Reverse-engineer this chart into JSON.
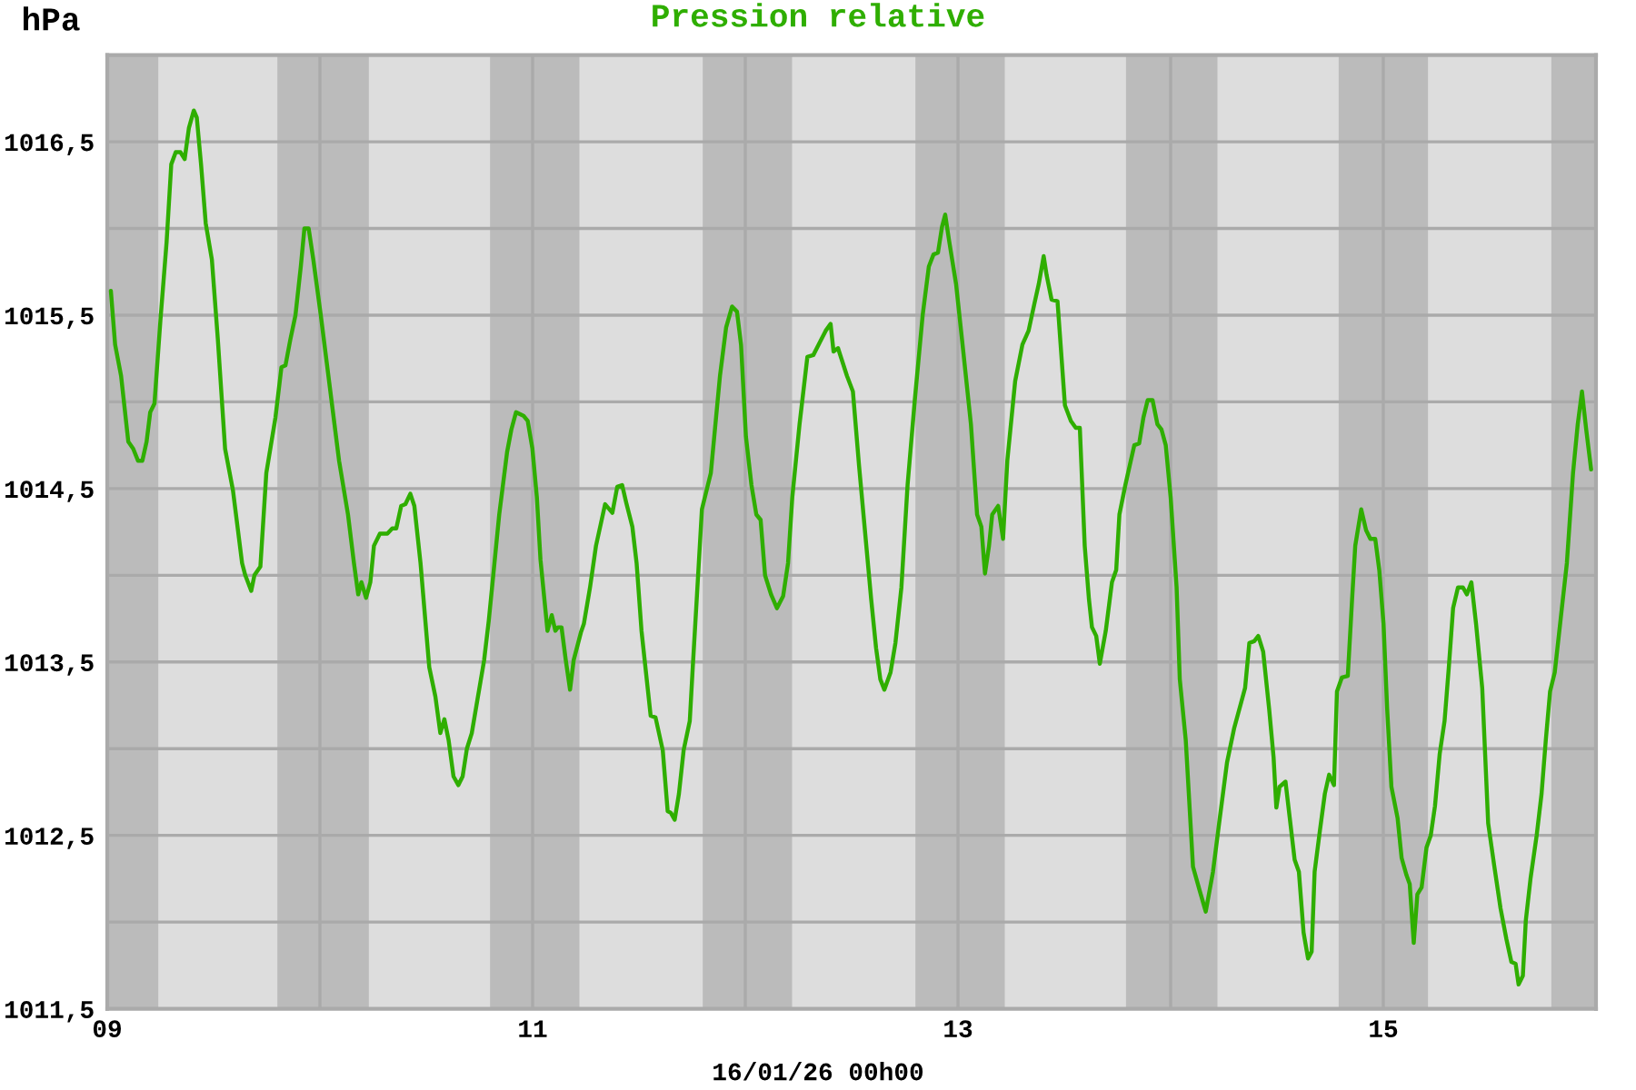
{
  "chart_data": {
    "type": "line",
    "title": "Pression relative",
    "xlabel": "16/01/26 00h00",
    "ylabel": "hPa",
    "x": [
      9.017,
      9.037,
      9.065,
      9.099,
      9.122,
      9.145,
      9.165,
      9.185,
      9.202,
      9.222,
      9.25,
      9.279,
      9.301,
      9.322,
      9.344,
      9.364,
      9.384,
      9.407,
      9.421,
      9.441,
      9.463,
      9.492,
      9.52,
      9.554,
      9.591,
      9.634,
      9.649,
      9.677,
      9.692,
      9.72,
      9.748,
      9.791,
      9.819,
      9.838,
      9.861,
      9.885,
      9.91,
      9.927,
      9.947,
      9.969,
      10.004,
      10.047,
      10.09,
      10.132,
      10.16,
      10.18,
      10.195,
      10.217,
      10.237,
      10.254,
      10.282,
      10.317,
      10.34,
      10.359,
      10.382,
      10.402,
      10.425,
      10.444,
      10.473,
      10.514,
      10.543,
      10.566,
      10.585,
      10.605,
      10.628,
      10.651,
      10.671,
      10.691,
      10.714,
      10.743,
      10.772,
      10.794,
      10.815,
      10.843,
      10.88,
      10.9,
      10.922,
      10.957,
      10.977,
      10.999,
      11.02,
      11.037,
      11.07,
      11.09,
      11.107,
      11.119,
      11.136,
      11.156,
      11.176,
      11.193,
      11.227,
      11.241,
      11.27,
      11.298,
      11.341,
      11.375,
      11.398,
      11.421,
      11.44,
      11.469,
      11.489,
      11.512,
      11.555,
      11.578,
      11.612,
      11.635,
      11.65,
      11.668,
      11.688,
      11.71,
      11.739,
      11.753,
      11.773,
      11.796,
      11.838,
      11.881,
      11.91,
      11.938,
      11.961,
      11.98,
      12.003,
      12.029,
      12.052,
      12.072,
      12.093,
      12.121,
      12.149,
      12.178,
      12.201,
      12.221,
      12.255,
      12.292,
      12.32,
      12.349,
      12.378,
      12.401,
      12.415,
      12.436,
      12.449,
      12.478,
      12.506,
      12.535,
      12.592,
      12.615,
      12.635,
      12.654,
      12.683,
      12.706,
      12.734,
      12.763,
      12.797,
      12.834,
      12.863,
      12.885,
      12.906,
      12.925,
      12.94,
      12.957,
      12.991,
      13.025,
      13.061,
      13.09,
      13.11,
      13.127,
      13.146,
      13.161,
      13.189,
      13.212,
      13.232,
      13.269,
      13.303,
      13.332,
      13.36,
      13.38,
      13.403,
      13.417,
      13.44,
      13.468,
      13.503,
      13.531,
      13.554,
      13.573,
      13.596,
      13.616,
      13.63,
      13.65,
      13.667,
      13.695,
      13.724,
      13.744,
      13.759,
      13.787,
      13.829,
      13.852,
      13.872,
      13.892,
      13.915,
      13.938,
      13.957,
      13.977,
      14.0,
      14.028,
      14.043,
      14.071,
      14.105,
      14.137,
      14.165,
      14.199,
      14.228,
      14.265,
      14.299,
      14.35,
      14.37,
      14.393,
      14.412,
      14.435,
      14.463,
      14.484,
      14.497,
      14.512,
      14.54,
      14.56,
      14.583,
      14.603,
      14.625,
      14.646,
      14.663,
      14.677,
      14.702,
      14.725,
      14.745,
      14.768,
      14.782,
      14.805,
      14.833,
      14.853,
      14.868,
      14.896,
      14.919,
      14.939,
      14.962,
      14.981,
      15.001,
      15.018,
      15.038,
      15.067,
      15.086,
      15.109,
      15.124,
      15.143,
      15.16,
      15.18,
      15.203,
      15.223,
      15.243,
      15.265,
      15.288,
      15.308,
      15.328,
      15.351,
      15.374,
      15.393,
      15.414,
      15.436,
      15.465,
      15.493,
      15.522,
      15.551,
      15.579,
      15.602,
      15.622,
      15.636,
      15.656,
      15.67,
      15.692,
      15.721,
      15.744,
      15.764,
      15.784,
      15.806,
      15.834,
      15.863,
      15.892,
      15.914,
      15.934,
      15.954,
      15.977
    ],
    "series": [
      {
        "color": "#2fae00",
        "values": [
          1015.64,
          1015.33,
          1015.15,
          1014.77,
          1014.73,
          1014.66,
          1014.66,
          1014.77,
          1014.94,
          1014.99,
          1015.47,
          1015.92,
          1016.37,
          1016.44,
          1016.44,
          1016.4,
          1016.58,
          1016.68,
          1016.64,
          1016.37,
          1016.03,
          1015.82,
          1015.36,
          1014.73,
          1014.49,
          1014.07,
          1014.0,
          1013.91,
          1014.0,
          1014.05,
          1014.59,
          1014.91,
          1015.2,
          1015.21,
          1015.36,
          1015.5,
          1015.78,
          1016.0,
          1016.0,
          1015.82,
          1015.5,
          1015.08,
          1014.66,
          1014.35,
          1014.07,
          1013.89,
          1013.96,
          1013.87,
          1013.96,
          1014.17,
          1014.24,
          1014.24,
          1014.27,
          1014.27,
          1014.4,
          1014.41,
          1014.47,
          1014.4,
          1014.07,
          1013.47,
          1013.3,
          1013.09,
          1013.17,
          1013.05,
          1012.84,
          1012.79,
          1012.84,
          1013.0,
          1013.09,
          1013.3,
          1013.51,
          1013.74,
          1014.0,
          1014.35,
          1014.71,
          1014.84,
          1014.94,
          1014.92,
          1014.89,
          1014.73,
          1014.45,
          1014.09,
          1013.68,
          1013.77,
          1013.68,
          1013.7,
          1013.7,
          1013.51,
          1013.34,
          1013.51,
          1013.67,
          1013.72,
          1013.93,
          1014.17,
          1014.41,
          1014.36,
          1014.51,
          1014.52,
          1014.42,
          1014.28,
          1014.07,
          1013.68,
          1013.19,
          1013.18,
          1012.99,
          1012.64,
          1012.63,
          1012.59,
          1012.74,
          1012.99,
          1013.16,
          1013.47,
          1013.89,
          1014.38,
          1014.59,
          1015.15,
          1015.43,
          1015.55,
          1015.52,
          1015.33,
          1014.8,
          1014.52,
          1014.35,
          1014.32,
          1014.0,
          1013.89,
          1013.81,
          1013.88,
          1014.07,
          1014.45,
          1014.87,
          1015.26,
          1015.27,
          1015.34,
          1015.41,
          1015.45,
          1015.29,
          1015.31,
          1015.26,
          1015.15,
          1015.06,
          1014.63,
          1013.86,
          1013.58,
          1013.4,
          1013.34,
          1013.44,
          1013.61,
          1013.93,
          1014.52,
          1015.01,
          1015.5,
          1015.78,
          1015.85,
          1015.86,
          1016.01,
          1016.08,
          1015.94,
          1015.68,
          1015.29,
          1014.87,
          1014.35,
          1014.28,
          1014.01,
          1014.17,
          1014.35,
          1014.4,
          1014.21,
          1014.66,
          1015.12,
          1015.33,
          1015.41,
          1015.57,
          1015.68,
          1015.84,
          1015.73,
          1015.59,
          1015.58,
          1014.98,
          1014.89,
          1014.85,
          1014.85,
          1014.17,
          1013.86,
          1013.7,
          1013.65,
          1013.49,
          1013.68,
          1013.96,
          1014.03,
          1014.35,
          1014.52,
          1014.75,
          1014.76,
          1014.91,
          1015.01,
          1015.01,
          1014.87,
          1014.84,
          1014.75,
          1014.45,
          1013.93,
          1013.4,
          1013.05,
          1012.32,
          1012.18,
          1012.06,
          1012.29,
          1012.57,
          1012.92,
          1013.12,
          1013.35,
          1013.61,
          1013.62,
          1013.65,
          1013.56,
          1013.23,
          1012.95,
          1012.66,
          1012.78,
          1012.81,
          1012.6,
          1012.36,
          1012.29,
          1011.94,
          1011.79,
          1011.83,
          1012.29,
          1012.53,
          1012.74,
          1012.85,
          1012.79,
          1013.33,
          1013.41,
          1013.42,
          1013.86,
          1014.17,
          1014.38,
          1014.26,
          1014.21,
          1014.21,
          1014.03,
          1013.72,
          1013.23,
          1012.78,
          1012.6,
          1012.37,
          1012.27,
          1012.22,
          1011.88,
          1012.16,
          1012.2,
          1012.43,
          1012.5,
          1012.67,
          1012.97,
          1013.16,
          1013.47,
          1013.81,
          1013.93,
          1013.93,
          1013.89,
          1013.96,
          1013.72,
          1013.35,
          1012.57,
          1012.32,
          1012.08,
          1011.9,
          1011.77,
          1011.76,
          1011.64,
          1011.69,
          1012.01,
          1012.25,
          1012.5,
          1012.74,
          1013.05,
          1013.33,
          1013.44,
          1013.75,
          1014.07,
          1014.59,
          1014.87,
          1015.06,
          1014.84,
          1014.61
        ]
      }
    ],
    "xlim": [
      9,
      16
    ],
    "ylim": [
      1011.5,
      1017
    ],
    "xticks": [
      {
        "value": 9,
        "label": "09"
      },
      {
        "value": 10,
        "label": null
      },
      {
        "value": 11,
        "label": "11"
      },
      {
        "value": 12,
        "label": null
      },
      {
        "value": 13,
        "label": "13"
      },
      {
        "value": 14,
        "label": null
      },
      {
        "value": 15,
        "label": "15"
      }
    ],
    "yticks": [
      {
        "value": 1011.5,
        "label": "1011,5"
      },
      {
        "value": 1012,
        "label": null
      },
      {
        "value": 1012.5,
        "label": "1012,5"
      },
      {
        "value": 1013,
        "label": null
      },
      {
        "value": 1013.5,
        "label": "1013,5"
      },
      {
        "value": 1014,
        "label": null
      },
      {
        "value": 1014.5,
        "label": "1014,5"
      },
      {
        "value": 1015,
        "label": null
      },
      {
        "value": 1015.5,
        "label": "1015,5"
      },
      {
        "value": 1016,
        "label": null
      },
      {
        "value": 1016.5,
        "label": "1016,5"
      }
    ],
    "grid": true,
    "bands": [
      {
        "axis": "x",
        "from": 9,
        "to": 9.24,
        "color": "#bbbbbb"
      },
      {
        "axis": "x",
        "from": 9.8,
        "to": 10.23,
        "color": "#bbbbbb"
      },
      {
        "axis": "x",
        "from": 10.8,
        "to": 11.22,
        "color": "#bbbbbb"
      },
      {
        "axis": "x",
        "from": 11.8,
        "to": 12.22,
        "color": "#bbbbbb"
      },
      {
        "axis": "x",
        "from": 12.8,
        "to": 13.22,
        "color": "#bbbbbb"
      },
      {
        "axis": "x",
        "from": 13.79,
        "to": 14.22,
        "color": "#bbbbbb"
      },
      {
        "axis": "x",
        "from": 14.79,
        "to": 15.21,
        "color": "#bbbbbb"
      },
      {
        "axis": "x",
        "from": 15.79,
        "to": 16,
        "color": "#bbbbbb"
      }
    ]
  }
}
